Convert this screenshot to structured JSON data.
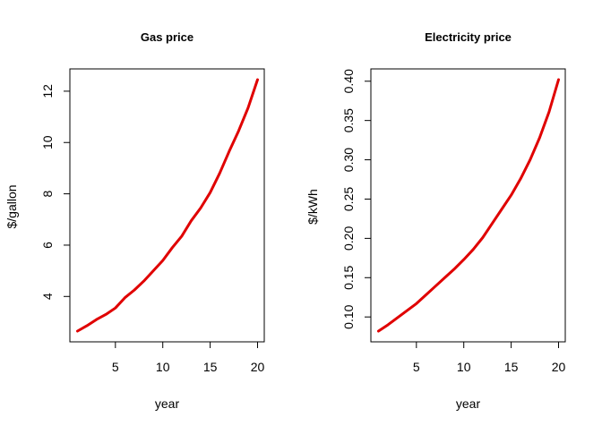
{
  "colors": {
    "line": "#e00000",
    "axis": "#000000",
    "background": "#ffffff"
  },
  "chart_data": [
    {
      "type": "line",
      "title": "Gas price",
      "xlabel": "year",
      "ylabel": "$/gallon",
      "xlim": [
        1,
        20
      ],
      "ylim": [
        2.65,
        12.45
      ],
      "grid": false,
      "x_ticks": [
        5,
        10,
        15,
        20
      ],
      "y_ticks": [
        4,
        6,
        8,
        10,
        12
      ],
      "y_tick_labels": [
        "4",
        "6",
        "8",
        "10",
        "12"
      ],
      "series": [
        {
          "x": [
            1,
            2,
            3,
            4,
            5,
            6,
            7,
            8,
            9,
            10,
            11,
            12,
            13,
            14,
            15,
            16,
            17,
            18,
            19,
            20
          ],
          "values": [
            2.65,
            2.86,
            3.1,
            3.3,
            3.55,
            3.95,
            4.25,
            4.6,
            5.0,
            5.4,
            5.9,
            6.35,
            6.95,
            7.45,
            8.05,
            8.8,
            9.65,
            10.45,
            11.35,
            12.45
          ]
        }
      ]
    },
    {
      "type": "line",
      "title": "Electricity price",
      "xlabel": "year",
      "ylabel": "$/kWh",
      "xlim": [
        1,
        20
      ],
      "ylim": [
        0.082,
        0.402
      ],
      "grid": false,
      "x_ticks": [
        5,
        10,
        15,
        20
      ],
      "y_ticks": [
        0.1,
        0.15,
        0.2,
        0.25,
        0.3,
        0.35,
        0.4
      ],
      "y_tick_labels": [
        "0.10",
        "0.15",
        "0.20",
        "0.25",
        "0.30",
        "0.35",
        "0.40"
      ],
      "series": [
        {
          "x": [
            1,
            2,
            3,
            4,
            5,
            6,
            7,
            8,
            9,
            10,
            11,
            12,
            13,
            14,
            15,
            16,
            17,
            18,
            19,
            20
          ],
          "values": [
            0.082,
            0.09,
            0.099,
            0.108,
            0.117,
            0.128,
            0.139,
            0.15,
            0.161,
            0.173,
            0.186,
            0.201,
            0.219,
            0.237,
            0.255,
            0.276,
            0.3,
            0.328,
            0.361,
            0.402
          ]
        }
      ]
    }
  ]
}
